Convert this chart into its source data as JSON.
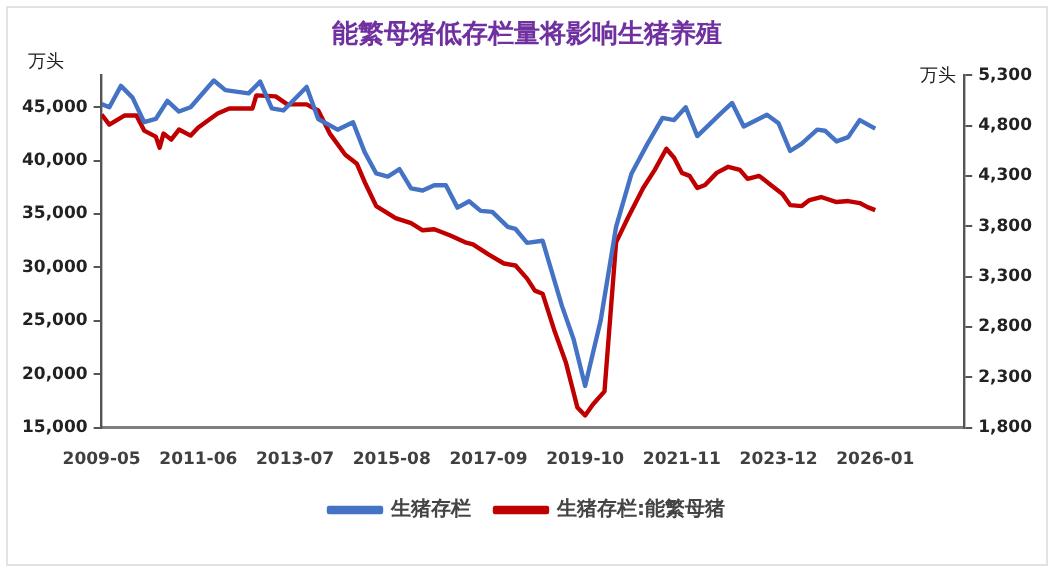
{
  "chart_data": {
    "type": "line",
    "title": "能繁母猪低存栏量将影响生猪养殖",
    "ylabel": "万头",
    "y2label": "万头",
    "xlim": [
      "2009-05",
      "2027-12"
    ],
    "xticks": [
      "2009-05",
      "2011-06",
      "2013-07",
      "2015-08",
      "2017-09",
      "2019-10",
      "2021-11",
      "2023-12",
      "2026-01"
    ],
    "ylim": [
      15000,
      48000
    ],
    "yticks": [
      {
        "value": 15000,
        "label": "15,000"
      },
      {
        "value": 20000,
        "label": "20,000"
      },
      {
        "value": 25000,
        "label": "25,000"
      },
      {
        "value": 30000,
        "label": "30,000"
      },
      {
        "value": 35000,
        "label": "35,000"
      },
      {
        "value": 40000,
        "label": "40,000"
      },
      {
        "value": 45000,
        "label": "45,000"
      }
    ],
    "y2lim": [
      1800,
      5300
    ],
    "y2ticks": [
      {
        "value": 1800,
        "label": "1,800"
      },
      {
        "value": 2300,
        "label": "2,300"
      },
      {
        "value": 2800,
        "label": "2,800"
      },
      {
        "value": 3300,
        "label": "3,300"
      },
      {
        "value": 3800,
        "label": "3,800"
      },
      {
        "value": 4300,
        "label": "4,300"
      },
      {
        "value": 4800,
        "label": "4,800"
      },
      {
        "value": 5300,
        "label": "5,300"
      }
    ],
    "grid": false,
    "legend": "bottom",
    "marker": "none",
    "line_style": "solid",
    "series": [
      {
        "name": "生猪存栏",
        "color": "#4472c4",
        "x": [
          "2009-05",
          "2009-07",
          "2009-10",
          "2010-01",
          "2010-04",
          "2010-07",
          "2010-10",
          "2011-01",
          "2011-04",
          "2011-10",
          "2012-01",
          "2012-07",
          "2012-10",
          "2013-01",
          "2013-04",
          "2013-10",
          "2014-01",
          "2014-06",
          "2014-10",
          "2015-01",
          "2015-04",
          "2015-07",
          "2015-10",
          "2016-01",
          "2016-04",
          "2016-07",
          "2016-10",
          "2017-01",
          "2017-04",
          "2017-07",
          "2017-10",
          "2018-02",
          "2018-04",
          "2018-07",
          "2018-11",
          "2019-04",
          "2019-07",
          "2019-10",
          "2020-02",
          "2020-06",
          "2020-10",
          "2021-02",
          "2021-06",
          "2021-09",
          "2021-12",
          "2022-03",
          "2022-09",
          "2022-12",
          "2023-03",
          "2023-09",
          "2023-12",
          "2024-03",
          "2024-06",
          "2024-10",
          "2024-12",
          "2025-03",
          "2025-06",
          "2025-09",
          "2026-01"
        ],
        "values": [
          45300,
          45000,
          47000,
          45900,
          43600,
          43900,
          45600,
          44600,
          45000,
          47500,
          46600,
          46300,
          47400,
          44900,
          44700,
          46900,
          43900,
          42900,
          43600,
          40800,
          38800,
          38500,
          39200,
          37400,
          37200,
          37700,
          37700,
          35600,
          36200,
          35300,
          35200,
          33800,
          33600,
          32300,
          32500,
          26400,
          23300,
          18900,
          25000,
          33800,
          38800,
          41500,
          44000,
          43800,
          45000,
          42300,
          44400,
          45400,
          43200,
          44300,
          43500,
          40900,
          41600,
          42900,
          42800,
          41800,
          42200,
          43800,
          43000
        ]
      },
      {
        "name": "生猪存栏:能繁母猪",
        "color": "#c00000",
        "axis": "y2",
        "x": [
          "2009-05",
          "2009-07",
          "2009-11",
          "2010-02",
          "2010-04",
          "2010-07",
          "2010-08",
          "2010-09",
          "2010-11",
          "2011-01",
          "2011-04",
          "2011-06",
          "2011-11",
          "2012-02",
          "2012-08",
          "2012-09",
          "2013-02",
          "2013-05",
          "2013-10",
          "2014-01",
          "2014-04",
          "2014-08",
          "2014-11",
          "2015-01",
          "2015-04",
          "2015-09",
          "2016-01",
          "2016-04",
          "2016-07",
          "2016-11",
          "2017-03",
          "2017-05",
          "2017-09",
          "2018-01",
          "2018-04",
          "2018-07",
          "2018-09",
          "2018-11",
          "2019-02",
          "2019-05",
          "2019-08",
          "2019-10",
          "2019-12",
          "2020-03",
          "2020-06",
          "2020-09",
          "2021-01",
          "2021-04",
          "2021-07",
          "2021-09",
          "2021-11",
          "2022-01",
          "2022-03",
          "2022-05",
          "2022-08",
          "2022-11",
          "2023-02",
          "2023-04",
          "2023-07",
          "2023-10",
          "2024-01",
          "2024-03",
          "2024-06",
          "2024-08",
          "2024-11",
          "2025-03",
          "2025-06",
          "2025-09",
          "2025-11",
          "2026-01"
        ],
        "values": [
          4910,
          4810,
          4900,
          4900,
          4750,
          4690,
          4580,
          4720,
          4660,
          4760,
          4700,
          4780,
          4920,
          4970,
          4970,
          5100,
          5090,
          5010,
          5010,
          4950,
          4720,
          4510,
          4420,
          4240,
          4000,
          3880,
          3830,
          3760,
          3770,
          3710,
          3640,
          3620,
          3520,
          3430,
          3410,
          3280,
          3160,
          3130,
          2770,
          2450,
          2000,
          1920,
          2030,
          2160,
          3640,
          3880,
          4180,
          4360,
          4570,
          4480,
          4330,
          4300,
          4180,
          4210,
          4330,
          4390,
          4360,
          4270,
          4300,
          4210,
          4120,
          4010,
          4000,
          4060,
          4090,
          4040,
          4050,
          4030,
          3990,
          3960
        ]
      }
    ]
  }
}
